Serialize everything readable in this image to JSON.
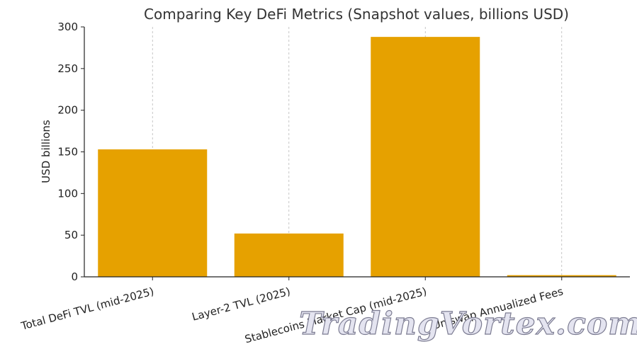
{
  "chart_data": {
    "type": "bar",
    "title": "Comparing Key DeFi Metrics (Snapshot values, billions USD)",
    "ylabel": "USD billions",
    "xlabel": "",
    "categories": [
      "Total DeFi TVL (mid-2025)",
      "Layer-2 TVL (2025)",
      "Stablecoins Market Cap (mid-2025)",
      "Uniswap Annualized Fees"
    ],
    "values": [
      153,
      52,
      288,
      2
    ],
    "ylim": [
      0,
      300
    ],
    "yticks": [
      0,
      50,
      100,
      150,
      200,
      250,
      300
    ],
    "grid": "vertical dashed",
    "bar_color": "#E6A100"
  },
  "watermark": "TradingVortex.com"
}
